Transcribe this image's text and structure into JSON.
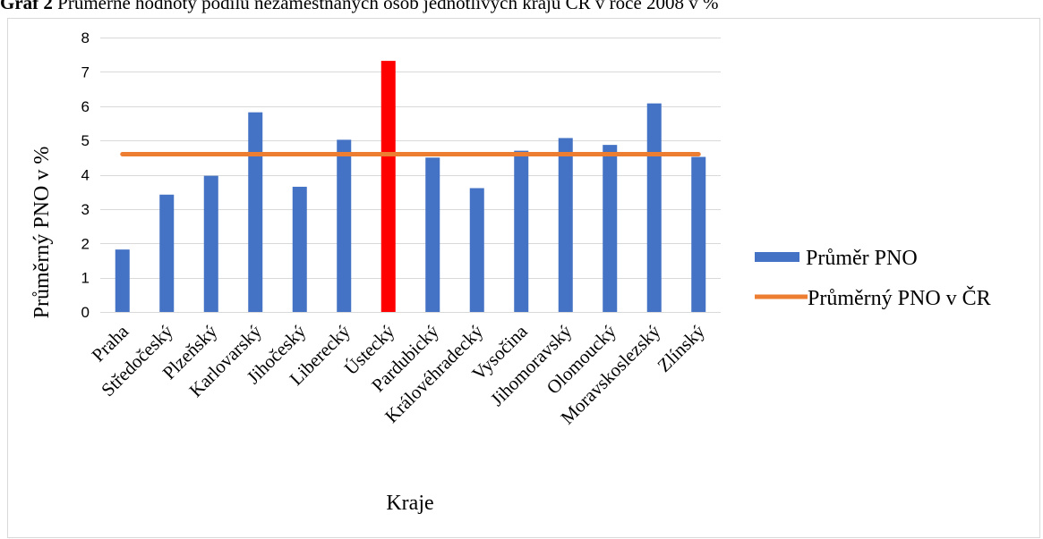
{
  "caption": {
    "number": "Graf 2",
    "text": "Průměrné hodnoty podílu nezaměstnaných osob jednotlivých krajů ČR v roce 2008 v %"
  },
  "chart_data": {
    "type": "bar",
    "categories": [
      "Praha",
      "Středočeský",
      "Plzeňský",
      "Karlovarský",
      "Jihočeský",
      "Liberecký",
      "Ústecký",
      "Pardubický",
      "Královéhradecký",
      "Vysočina",
      "Jihomoravský",
      "Olomoucký",
      "Moravskoslezský",
      "Zlínský"
    ],
    "series": [
      {
        "name": "Průměr PNO",
        "type": "bar",
        "color": "#4472C4",
        "highlight": {
          "category": "Ústecký",
          "color": "#FF0000"
        },
        "values": [
          1.82,
          3.42,
          3.97,
          5.82,
          3.65,
          5.02,
          7.32,
          4.5,
          3.61,
          4.7,
          5.07,
          4.87,
          6.08,
          4.52
        ]
      },
      {
        "name": "Průměrný PNO v ČR",
        "type": "line",
        "color": "#ED7D31",
        "values": [
          4.6,
          4.6,
          4.6,
          4.6,
          4.6,
          4.6,
          4.6,
          4.6,
          4.6,
          4.6,
          4.6,
          4.6,
          4.6,
          4.6
        ]
      }
    ],
    "xlabel": "Kraje",
    "ylabel": "Průměrný PNO v %",
    "ylim": [
      0,
      8
    ],
    "yticks": [
      0,
      1,
      2,
      3,
      4,
      5,
      6,
      7,
      8
    ],
    "grid": "horizontal",
    "legend": "right"
  }
}
